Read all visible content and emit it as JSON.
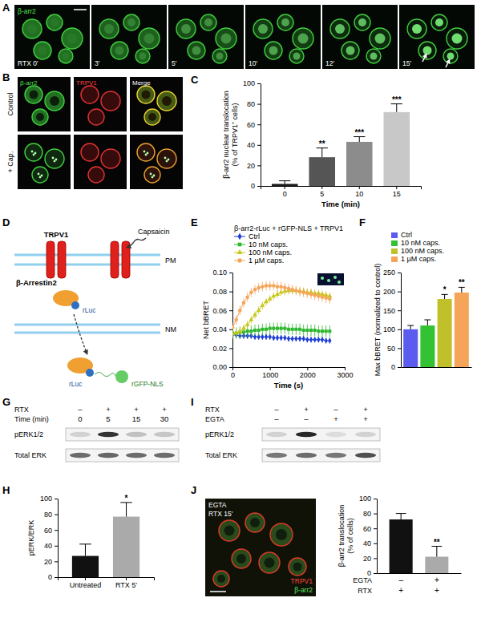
{
  "chart_data": [
    {
      "panel": "C",
      "type": "bar",
      "categories": [
        0,
        5,
        10,
        15
      ],
      "values": [
        2,
        28,
        43,
        72
      ],
      "errors": [
        3,
        9,
        5,
        8
      ],
      "significance": [
        null,
        "**",
        "***",
        "***"
      ],
      "colors": [
        "#1a1a1a",
        "#555555",
        "#8c8c8c",
        "#c8c8c8"
      ],
      "x_label": "Time (min)",
      "y_label": "β-arr2 nuclear translocation (% of TRPV1⁺ cells)",
      "ylim": [
        0,
        100
      ],
      "yticks": [
        0,
        20,
        40,
        60,
        80,
        100
      ]
    },
    {
      "panel": "E",
      "type": "line",
      "title": "β-arr2-rLuc + rGFP-NLS + TRPV1",
      "x_label": "Time (s)",
      "y_label": "Net bBRET",
      "x": [
        0,
        100,
        200,
        300,
        400,
        500,
        600,
        700,
        800,
        900,
        1000,
        1100,
        1200,
        1300,
        1400,
        1500,
        1600,
        1700,
        1800,
        1900,
        2000,
        2100,
        2200,
        2300,
        2400,
        2500,
        2600
      ],
      "series": [
        {
          "name": "Ctrl",
          "color": "#1f3fd6",
          "marker": "diamond",
          "values": [
            0.034,
            0.034,
            0.033,
            0.033,
            0.033,
            0.033,
            0.032,
            0.032,
            0.032,
            0.032,
            0.032,
            0.031,
            0.031,
            0.031,
            0.031,
            0.03,
            0.03,
            0.03,
            0.03,
            0.03,
            0.029,
            0.029,
            0.029,
            0.029,
            0.029,
            0.028,
            0.028
          ],
          "errors": [
            0.003,
            0.003,
            0.003,
            0.003,
            0.003,
            0.003,
            0.003,
            0.003,
            0.003,
            0.003,
            0.003,
            0.003,
            0.003,
            0.003,
            0.003,
            0.003,
            0.003,
            0.003,
            0.003,
            0.003,
            0.003,
            0.003,
            0.003,
            0.003,
            0.003,
            0.003,
            0.003
          ]
        },
        {
          "name": "10 nM caps.",
          "color": "#2eb82e",
          "marker": "square",
          "values": [
            0.036,
            0.036,
            0.037,
            0.037,
            0.038,
            0.038,
            0.039,
            0.039,
            0.04,
            0.04,
            0.041,
            0.041,
            0.041,
            0.041,
            0.041,
            0.04,
            0.04,
            0.04,
            0.04,
            0.039,
            0.039,
            0.039,
            0.039,
            0.038,
            0.038,
            0.038,
            0.038
          ],
          "errors": [
            0.006,
            0.006,
            0.006,
            0.006,
            0.006,
            0.006,
            0.006,
            0.006,
            0.006,
            0.006,
            0.006,
            0.006,
            0.006,
            0.006,
            0.006,
            0.006,
            0.006,
            0.006,
            0.006,
            0.006,
            0.006,
            0.006,
            0.006,
            0.006,
            0.006,
            0.006,
            0.006
          ]
        },
        {
          "name": "100 nM caps.",
          "color": "#c8c81e",
          "marker": "triangle",
          "values": [
            0.035,
            0.036,
            0.038,
            0.041,
            0.045,
            0.05,
            0.055,
            0.06,
            0.065,
            0.069,
            0.072,
            0.075,
            0.077,
            0.079,
            0.08,
            0.081,
            0.081,
            0.081,
            0.08,
            0.08,
            0.079,
            0.079,
            0.078,
            0.078,
            0.077,
            0.076,
            0.075
          ],
          "errors": [
            0.004,
            0.004,
            0.004,
            0.004,
            0.004,
            0.004,
            0.004,
            0.004,
            0.004,
            0.004,
            0.004,
            0.004,
            0.004,
            0.004,
            0.004,
            0.004,
            0.004,
            0.004,
            0.004,
            0.004,
            0.004,
            0.004,
            0.004,
            0.004,
            0.004,
            0.004,
            0.004
          ]
        },
        {
          "name": "1 µM caps.",
          "color": "#f5a55a",
          "marker": "circle",
          "values": [
            0.042,
            0.05,
            0.06,
            0.068,
            0.074,
            0.079,
            0.082,
            0.084,
            0.085,
            0.086,
            0.086,
            0.086,
            0.085,
            0.085,
            0.084,
            0.083,
            0.082,
            0.081,
            0.08,
            0.079,
            0.078,
            0.077,
            0.076,
            0.075,
            0.074,
            0.073,
            0.072
          ],
          "errors": [
            0.005,
            0.005,
            0.005,
            0.005,
            0.005,
            0.005,
            0.005,
            0.005,
            0.005,
            0.005,
            0.005,
            0.005,
            0.005,
            0.005,
            0.005,
            0.005,
            0.005,
            0.005,
            0.005,
            0.005,
            0.005,
            0.005,
            0.005,
            0.005,
            0.005,
            0.005,
            0.005
          ]
        }
      ],
      "xlim": [
        0,
        3000
      ],
      "xticks": [
        0,
        1000,
        2000,
        3000
      ],
      "ylim": [
        0,
        0.1
      ],
      "yticks": [
        {
          "value": 0,
          "label": "0.00"
        },
        {
          "value": 0.02,
          "label": "0.02"
        },
        {
          "value": 0.04,
          "label": "0.04"
        },
        {
          "value": 0.06,
          "label": "0.06"
        },
        {
          "value": 0.08,
          "label": "0.08"
        },
        {
          "value": 0.1,
          "label": "0.10"
        }
      ],
      "legend": "top"
    },
    {
      "panel": "F",
      "type": "bar",
      "categories": [
        "Ctrl",
        "10 nM caps.",
        "100 nM caps.",
        "1 µM caps."
      ],
      "values": [
        100,
        110,
        180,
        197
      ],
      "errors": [
        10,
        15,
        12,
        14
      ],
      "significance": [
        null,
        null,
        "*",
        "**"
      ],
      "colors": [
        "#5b5bf0",
        "#33c233",
        "#c0c02a",
        "#f5a55a"
      ],
      "y_label": "Max bBRET (normalized to control)",
      "ylim": [
        0,
        250
      ],
      "yticks": [
        0,
        50,
        100,
        150,
        200,
        250
      ],
      "tick_labels": "y",
      "legend": "top"
    },
    {
      "panel": "H",
      "type": "bar",
      "categories": [
        "Untreated",
        "RTX 5'"
      ],
      "values": [
        27,
        77
      ],
      "errors": [
        15,
        18
      ],
      "significance": [
        null,
        "*"
      ],
      "colors": [
        "#111111",
        "#aaaaaa"
      ],
      "y_label": "pERK/ERK",
      "ylim": [
        0,
        100
      ],
      "yticks": [
        0,
        20,
        40,
        60,
        80,
        100
      ]
    },
    {
      "panel": "J",
      "type": "bar",
      "categories": [
        null,
        null
      ],
      "values": [
        72,
        22
      ],
      "errors": [
        8,
        14
      ],
      "significance": [
        null,
        "**"
      ],
      "colors": [
        "#111111",
        "#aaaaaa"
      ],
      "y_label": "β-arr2 translocation (% of cells)",
      "condition_rows": [
        {
          "label": "EGTA",
          "values": [
            "–",
            "+"
          ]
        },
        {
          "label": "RTX",
          "values": [
            "+",
            "+"
          ]
        }
      ],
      "ylim": [
        0,
        100
      ],
      "yticks": [
        0,
        20,
        40,
        60,
        80,
        100
      ]
    }
  ],
  "panels": {
    "A": {
      "letter": "A",
      "channel_label": "β-arr2",
      "time_labels": [
        "RTX 0'",
        "3'",
        "5'",
        "10'",
        "12'",
        "15'"
      ]
    },
    "B": {
      "letter": "B",
      "row_labels": [
        "Control",
        "+ Cap."
      ],
      "column_labels": [
        "β-arr2",
        "TRPV1",
        "Merge"
      ]
    },
    "D": {
      "letter": "D",
      "labels": {
        "channel": "TRPV1",
        "agonist": "Capsaicin",
        "plasma_membrane": "PM",
        "arrestin": "β-Arrestin2",
        "donor": "rLuc",
        "nuclear_membrane": "NM",
        "acceptor": "rGFP-NLS"
      }
    },
    "G": {
      "letter": "G",
      "rows": [
        {
          "label": "RTX",
          "values": [
            "–",
            "+",
            "+",
            "+"
          ]
        },
        {
          "label": "Time (min)",
          "values": [
            0,
            5,
            15,
            30
          ]
        }
      ],
      "blots": [
        "pERK1/2",
        "Total ERK"
      ]
    },
    "I": {
      "letter": "I",
      "rows": [
        {
          "label": "RTX",
          "values": [
            "–",
            "+",
            "–",
            "+"
          ]
        },
        {
          "label": "EGTA",
          "values": [
            "–",
            "–",
            "+",
            "+"
          ]
        }
      ],
      "blots": [
        "pERK1/2",
        "Total ERK"
      ]
    },
    "J": {
      "letter": "J",
      "image_labels": [
        "EGTA",
        "RTX 15'"
      ],
      "channel_labels": [
        "TRPV1",
        "β-arr2"
      ]
    }
  }
}
